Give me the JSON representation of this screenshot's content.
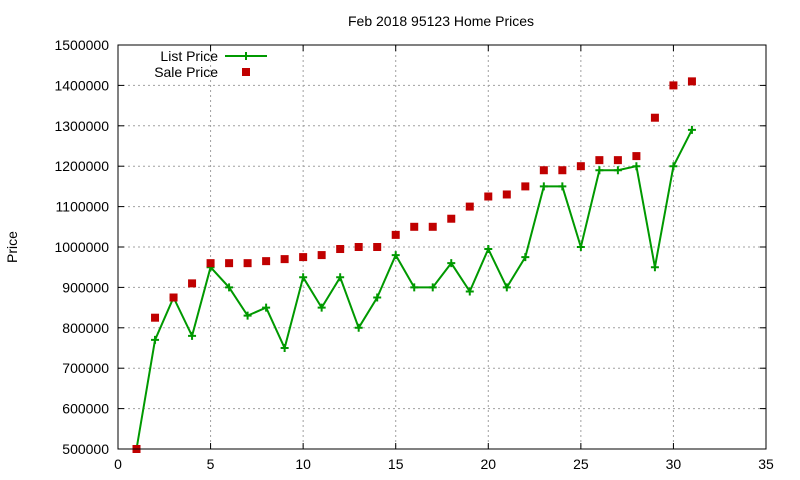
{
  "chart_data": {
    "type": "line",
    "title": "Feb 2018 95123 Home Prices",
    "xlabel": "",
    "ylabel": "Price",
    "xlim": [
      0,
      35
    ],
    "ylim": [
      500000,
      1500000
    ],
    "xticks": [
      "0",
      "5",
      "10",
      "15",
      "20",
      "25",
      "30",
      "35"
    ],
    "yticks": [
      "500000",
      "600000",
      "700000",
      "800000",
      "900000",
      "1000000",
      "1100000",
      "1200000",
      "1300000",
      "1400000",
      "1500000"
    ],
    "grid": true,
    "legend_position": "top-left",
    "series": [
      {
        "name": "List Price",
        "style": "line-with-plus-markers",
        "color": "#009900",
        "x": [
          1,
          2,
          3,
          4,
          5,
          6,
          7,
          8,
          9,
          10,
          11,
          12,
          13,
          14,
          15,
          16,
          17,
          18,
          19,
          20,
          21,
          22,
          23,
          24,
          25,
          26,
          27,
          28,
          29,
          30,
          31
        ],
        "values": [
          500000,
          770000,
          875000,
          780000,
          950000,
          900000,
          830000,
          850000,
          750000,
          925000,
          850000,
          925000,
          800000,
          875000,
          980000,
          900000,
          900000,
          960000,
          890000,
          995000,
          900000,
          975000,
          1150000,
          1150000,
          1000000,
          1190000,
          1190000,
          1200000,
          950000,
          1200000,
          1290000
        ]
      },
      {
        "name": "Sale Price",
        "style": "square-points",
        "color": "#c00000",
        "x": [
          1,
          2,
          3,
          4,
          5,
          6,
          7,
          8,
          9,
          10,
          11,
          12,
          13,
          14,
          15,
          16,
          17,
          18,
          19,
          20,
          21,
          22,
          23,
          24,
          25,
          26,
          27,
          28,
          29,
          30,
          31
        ],
        "values": [
          500000,
          825000,
          875000,
          910000,
          960000,
          960000,
          960000,
          965000,
          970000,
          975000,
          980000,
          995000,
          1000000,
          1000000,
          1030000,
          1050000,
          1050000,
          1070000,
          1100000,
          1125000,
          1130000,
          1150000,
          1190000,
          1190000,
          1200000,
          1215000,
          1215000,
          1225000,
          1320000,
          1400000,
          1410000
        ]
      }
    ]
  }
}
